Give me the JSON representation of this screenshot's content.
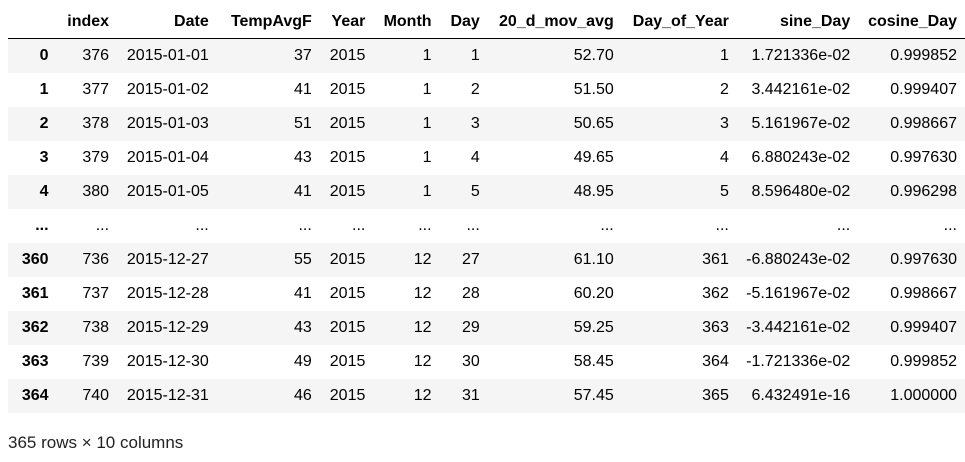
{
  "table": {
    "columns": [
      "",
      "index",
      "Date",
      "TempAvgF",
      "Year",
      "Month",
      "Day",
      "20_d_mov_avg",
      "Day_of_Year",
      "sine_Day",
      "cosine_Day"
    ],
    "rows": [
      [
        "0",
        "376",
        "2015-01-01",
        "37",
        "2015",
        "1",
        "1",
        "52.70",
        "1",
        "1.721336e-02",
        "0.999852"
      ],
      [
        "1",
        "377",
        "2015-01-02",
        "41",
        "2015",
        "1",
        "2",
        "51.50",
        "2",
        "3.442161e-02",
        "0.999407"
      ],
      [
        "2",
        "378",
        "2015-01-03",
        "51",
        "2015",
        "1",
        "3",
        "50.65",
        "3",
        "5.161967e-02",
        "0.998667"
      ],
      [
        "3",
        "379",
        "2015-01-04",
        "43",
        "2015",
        "1",
        "4",
        "49.65",
        "4",
        "6.880243e-02",
        "0.997630"
      ],
      [
        "4",
        "380",
        "2015-01-05",
        "41",
        "2015",
        "1",
        "5",
        "48.95",
        "5",
        "8.596480e-02",
        "0.996298"
      ],
      [
        "...",
        "...",
        "...",
        "...",
        "...",
        "...",
        "...",
        "...",
        "...",
        "...",
        "..."
      ],
      [
        "360",
        "736",
        "2015-12-27",
        "55",
        "2015",
        "12",
        "27",
        "61.10",
        "361",
        "-6.880243e-02",
        "0.997630"
      ],
      [
        "361",
        "737",
        "2015-12-28",
        "41",
        "2015",
        "12",
        "28",
        "60.20",
        "362",
        "-5.161967e-02",
        "0.998667"
      ],
      [
        "362",
        "738",
        "2015-12-29",
        "43",
        "2015",
        "12",
        "29",
        "59.25",
        "363",
        "-3.442161e-02",
        "0.999407"
      ],
      [
        "363",
        "739",
        "2015-12-30",
        "49",
        "2015",
        "12",
        "30",
        "58.45",
        "364",
        "-1.721336e-02",
        "0.999852"
      ],
      [
        "364",
        "740",
        "2015-12-31",
        "46",
        "2015",
        "12",
        "31",
        "57.45",
        "365",
        "6.432491e-16",
        "1.000000"
      ]
    ],
    "summary": "365 rows × 10 columns"
  }
}
